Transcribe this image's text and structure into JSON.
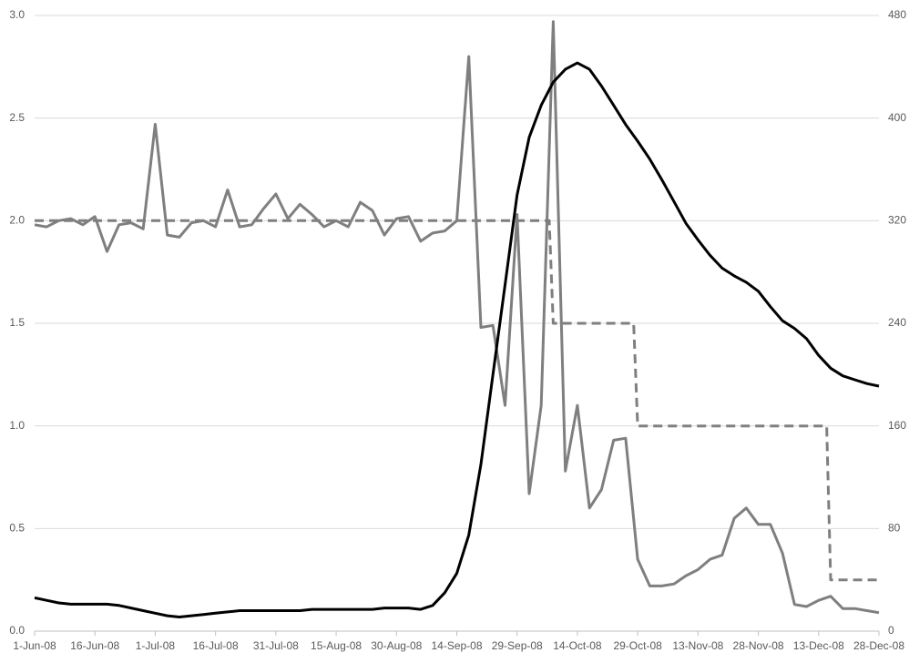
{
  "chart_data": {
    "type": "line",
    "x": [
      "2008-06-01",
      "2008-06-04",
      "2008-06-07",
      "2008-06-10",
      "2008-06-13",
      "2008-06-16",
      "2008-06-19",
      "2008-06-22",
      "2008-06-25",
      "2008-06-28",
      "2008-07-01",
      "2008-07-04",
      "2008-07-07",
      "2008-07-10",
      "2008-07-13",
      "2008-07-16",
      "2008-07-19",
      "2008-07-22",
      "2008-07-25",
      "2008-07-28",
      "2008-07-31",
      "2008-08-03",
      "2008-08-06",
      "2008-08-09",
      "2008-08-12",
      "2008-08-15",
      "2008-08-18",
      "2008-08-21",
      "2008-08-24",
      "2008-08-27",
      "2008-08-30",
      "2008-09-02",
      "2008-09-05",
      "2008-09-08",
      "2008-09-11",
      "2008-09-14",
      "2008-09-17",
      "2008-09-20",
      "2008-09-23",
      "2008-09-26",
      "2008-09-29",
      "2008-10-02",
      "2008-10-05",
      "2008-10-08",
      "2008-10-11",
      "2008-10-14",
      "2008-10-17",
      "2008-10-20",
      "2008-10-23",
      "2008-10-26",
      "2008-10-29",
      "2008-11-01",
      "2008-11-04",
      "2008-11-07",
      "2008-11-10",
      "2008-11-13",
      "2008-11-16",
      "2008-11-19",
      "2008-11-22",
      "2008-11-25",
      "2008-11-28",
      "2008-12-01",
      "2008-12-04",
      "2008-12-07",
      "2008-12-10",
      "2008-12-13",
      "2008-12-16",
      "2008-12-19",
      "2008-12-22",
      "2008-12-25",
      "2008-12-28"
    ],
    "series": [
      {
        "color": "#7f7f7f",
        "values": [
          1.98,
          1.97,
          2.0,
          2.01,
          1.98,
          2.02,
          1.85,
          1.98,
          1.99,
          1.96,
          2.47,
          1.93,
          1.92,
          1.99,
          2.0,
          1.97,
          2.15,
          1.97,
          1.98,
          2.06,
          2.13,
          2.01,
          2.08,
          2.03,
          1.97,
          2.0,
          1.97,
          2.09,
          2.05,
          1.93,
          2.01,
          2.02,
          1.9,
          1.94,
          1.95,
          2.0,
          2.8,
          1.48,
          1.49,
          1.1,
          2.03,
          0.67,
          1.1,
          2.97,
          0.78,
          1.1,
          0.6,
          0.69,
          0.93,
          0.94,
          0.35,
          0.22,
          0.22,
          0.23,
          0.27,
          0.3,
          0.35,
          0.37,
          0.55,
          0.6,
          0.52,
          0.52,
          0.38,
          0.13,
          0.12,
          0.15,
          0.17,
          0.11,
          0.11,
          0.1,
          0.09
        ]
      },
      {
        "color": "#000000",
        "axis": "y2",
        "values": [
          26,
          24,
          22,
          21,
          21,
          21,
          21,
          20,
          18,
          16,
          14,
          12,
          11,
          12,
          13,
          14,
          15,
          16,
          16,
          16,
          16,
          16,
          16,
          17,
          17,
          17,
          17,
          17,
          17,
          18,
          18,
          18,
          17,
          20,
          30,
          45,
          75,
          130,
          200,
          270,
          340,
          385,
          410,
          428,
          438,
          443,
          438,
          425,
          410,
          395,
          382,
          368,
          352,
          335,
          318,
          305,
          293,
          283,
          277,
          272,
          265,
          253,
          242,
          236,
          228,
          215,
          205,
          199,
          196,
          193,
          191
        ]
      },
      {
        "color": "#7f7f7f",
        "dash": true,
        "x": [
          "2008-06-01",
          "2008-10-07",
          "2008-10-08",
          "2008-10-28",
          "2008-10-29",
          "2008-12-15",
          "2008-12-16",
          "2008-12-28"
        ],
        "values": [
          2.0,
          2.0,
          1.5,
          1.5,
          1.0,
          1.0,
          0.25,
          0.25
        ]
      }
    ],
    "xlim": [
      "2008-06-01",
      "2008-12-28"
    ],
    "xticks": [
      {
        "value": "2008-06-01",
        "label": "1-Jun-08"
      },
      {
        "value": "2008-06-16",
        "label": "16-Jun-08"
      },
      {
        "value": "2008-07-01",
        "label": "1-Jul-08"
      },
      {
        "value": "2008-07-16",
        "label": "16-Jul-08"
      },
      {
        "value": "2008-07-31",
        "label": "31-Jul-08"
      },
      {
        "value": "2008-08-15",
        "label": "15-Aug-08"
      },
      {
        "value": "2008-08-30",
        "label": "30-Aug-08"
      },
      {
        "value": "2008-09-14",
        "label": "14-Sep-08"
      },
      {
        "value": "2008-09-29",
        "label": "29-Sep-08"
      },
      {
        "value": "2008-10-14",
        "label": "14-Oct-08"
      },
      {
        "value": "2008-10-29",
        "label": "29-Oct-08"
      },
      {
        "value": "2008-11-13",
        "label": "13-Nov-08"
      },
      {
        "value": "2008-11-28",
        "label": "28-Nov-08"
      },
      {
        "value": "2008-12-13",
        "label": "13-Dec-08"
      },
      {
        "value": "2008-12-28",
        "label": "28-Dec-08"
      }
    ],
    "ylim": [
      0,
      3
    ],
    "yticks": [
      {
        "value": 0,
        "label": "0.0"
      },
      {
        "value": 0.5,
        "label": "0.5"
      },
      {
        "value": 1,
        "label": "1.0"
      },
      {
        "value": 1.5,
        "label": "1.5"
      },
      {
        "value": 2,
        "label": "2.0"
      },
      {
        "value": 2.5,
        "label": "2.5"
      },
      {
        "value": 3,
        "label": "3.0"
      }
    ],
    "y2lim": [
      0,
      480
    ],
    "y2ticks": [
      0,
      80,
      160,
      240,
      320,
      400,
      480
    ],
    "grid": true
  }
}
